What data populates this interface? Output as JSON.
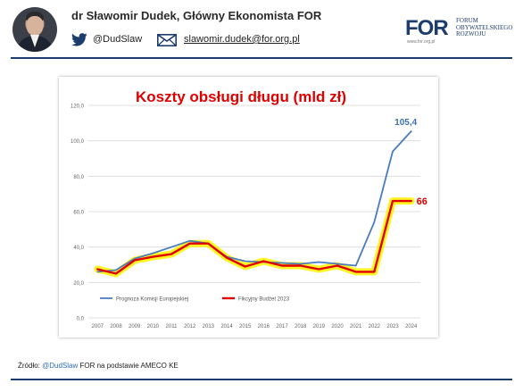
{
  "header": {
    "author": "dr Sławomir Dudek, Główny Ekonomista FOR",
    "twitter": "@DudSlaw",
    "email": "slawomir.dudek@for.org.pl",
    "logo": {
      "word": "FOR",
      "line1": "FORUM",
      "line2": "OBYWATELSKIEGO",
      "line3": "ROZWOJU",
      "url": "www.for.org.pl"
    }
  },
  "footer": {
    "prefix": "Źródło: ",
    "handle": "@DudSlaw",
    "suffix": " FOR na podstawie AMECO KE"
  },
  "colors": {
    "blue": "#4a7dbf",
    "red": "#e00000",
    "glow": "#fff200",
    "title": "#e00000",
    "label_blue": "#3c6fb6"
  },
  "chart_data": {
    "type": "line",
    "title": "Koszty obsługi długu (mld zł)",
    "xlabel": "",
    "ylabel": "",
    "ylim": [
      0,
      120
    ],
    "yticks": [
      "0,0",
      "20,0",
      "40,0",
      "60,0",
      "80,0",
      "100,0",
      "120,0"
    ],
    "grid": true,
    "legend_position": "bottom-left",
    "x": [
      "2007",
      "2008",
      "2009",
      "2010",
      "2011",
      "2012",
      "2013",
      "2014",
      "2015",
      "2016",
      "2017",
      "2018",
      "2019",
      "2020",
      "2021",
      "2022",
      "2023",
      "2024"
    ],
    "series": [
      {
        "name": "Prognoza Komisji Europejskiej",
        "color": "#4a7dbf",
        "values": [
          26.0,
          27.0,
          33.5,
          36.5,
          40.0,
          43.5,
          42.0,
          34.5,
          32.0,
          31.5,
          31.0,
          30.5,
          31.5,
          30.5,
          29.5,
          54.0,
          94.0,
          105.4
        ]
      },
      {
        "name": "Fikcyjny Budżet 2023",
        "color": "#e00000",
        "values": [
          27.5,
          25.0,
          32.5,
          34.5,
          36.0,
          42.0,
          42.0,
          34.0,
          29.0,
          32.0,
          29.5,
          29.5,
          27.5,
          29.5,
          26.0,
          26.0,
          66.0,
          66.0
        ]
      }
    ],
    "annotations": [
      {
        "label": "105,4",
        "series": 0,
        "index": 17
      },
      {
        "label": "66",
        "series": 1,
        "index": 17
      }
    ]
  }
}
